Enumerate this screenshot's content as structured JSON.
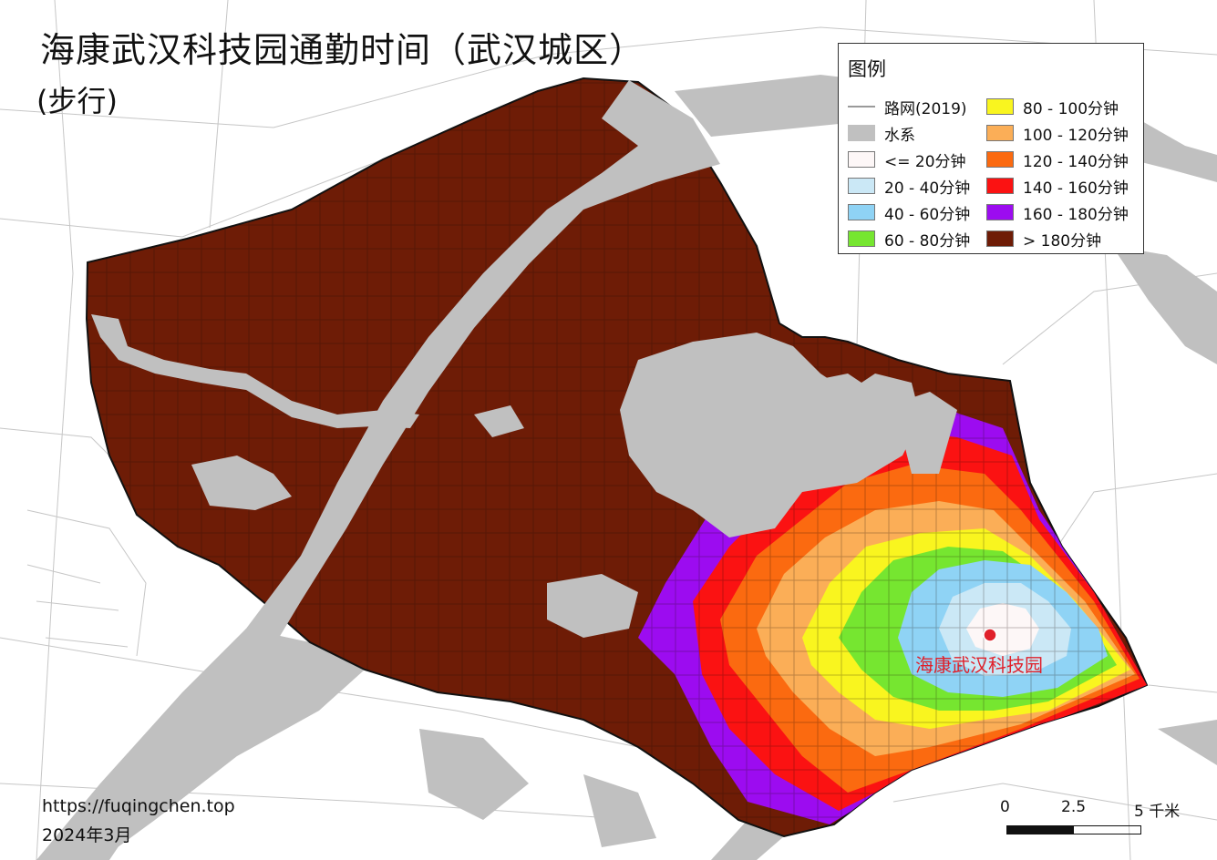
{
  "title": "海康武汉科技园通勤时间（武汉城区）",
  "subtitle": "(步行)",
  "legend": {
    "title": "图例",
    "items": [
      {
        "label": "路网(2019)",
        "kind": "line",
        "color": "#9a9a9a"
      },
      {
        "label": "水系",
        "kind": "water",
        "color": "#c0c0c0"
      },
      {
        "label": "<= 20分钟",
        "kind": "fill",
        "color": "#fdf7f7"
      },
      {
        "label": "20 - 40分钟",
        "kind": "fill",
        "color": "#cbe8f6"
      },
      {
        "label": "40 - 60分钟",
        "kind": "fill",
        "color": "#8fd3f5"
      },
      {
        "label": "60 - 80分钟",
        "kind": "fill",
        "color": "#76e630"
      },
      {
        "label": "80 - 100分钟",
        "kind": "fill",
        "color": "#f9f51f"
      },
      {
        "label": "100 - 120分钟",
        "kind": "fill",
        "color": "#fbae57"
      },
      {
        "label": "120 - 140分钟",
        "kind": "fill",
        "color": "#fb6a10"
      },
      {
        "label": "140 - 160分钟",
        "kind": "fill",
        "color": "#fb1212"
      },
      {
        "label": "160 - 180分钟",
        "kind": "fill",
        "color": "#9c0cf0"
      },
      {
        "label": "> 180分钟",
        "kind": "fill",
        "color": "#6e1c06"
      }
    ]
  },
  "poi": {
    "label": "海康武汉科技园",
    "color": "#e0202a"
  },
  "footer": {
    "url": "https://fuqingchen.top",
    "date": "2024年3月"
  },
  "scale": {
    "labels": [
      "0",
      "2.5",
      "5 千米"
    ]
  }
}
